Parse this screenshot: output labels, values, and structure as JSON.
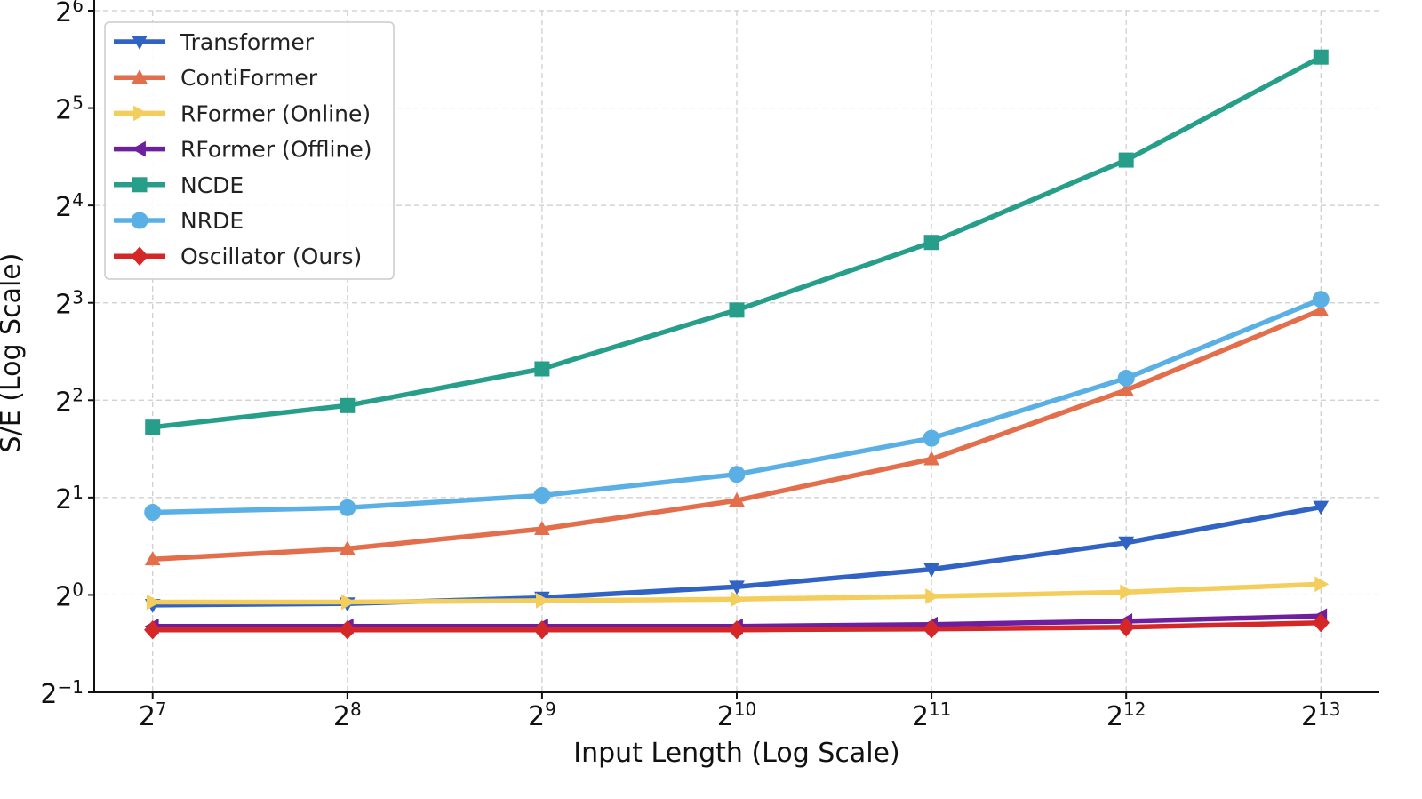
{
  "chart_data": {
    "type": "line",
    "title": "",
    "xlabel": "Input Length (Log Scale)",
    "ylabel": "S/E (Log Scale)",
    "x_scale": "log2",
    "y_scale": "log2",
    "x": [
      128,
      256,
      512,
      1024,
      2048,
      4096,
      8192
    ],
    "x_tick_labels": [
      {
        "base": "2",
        "exp": "7"
      },
      {
        "base": "2",
        "exp": "8"
      },
      {
        "base": "2",
        "exp": "9"
      },
      {
        "base": "2",
        "exp": "10"
      },
      {
        "base": "2",
        "exp": "11"
      },
      {
        "base": "2",
        "exp": "12"
      },
      {
        "base": "2",
        "exp": "13"
      }
    ],
    "y_tick_labels": [
      {
        "base": "2",
        "exp": "−1"
      },
      {
        "base": "2",
        "exp": "0"
      },
      {
        "base": "2",
        "exp": "1"
      },
      {
        "base": "2",
        "exp": "2"
      },
      {
        "base": "2",
        "exp": "3"
      },
      {
        "base": "2",
        "exp": "4"
      },
      {
        "base": "2",
        "exp": "5"
      },
      {
        "base": "2",
        "exp": "6"
      }
    ],
    "x_exp_range": [
      6.7,
      13.3
    ],
    "y_exp_range": [
      -1,
      6
    ],
    "grid": true,
    "legend_position": "top-left",
    "series": [
      {
        "name": "Transformer",
        "color": "#3063c4",
        "marker": "triangle-down",
        "values": [
          0.93,
          0.94,
          0.98,
          1.06,
          1.2,
          1.45,
          1.87
        ]
      },
      {
        "name": "ContiFormer",
        "color": "#e36e4c",
        "marker": "triangle-up",
        "values": [
          1.29,
          1.39,
          1.6,
          1.96,
          2.63,
          4.3,
          7.6
        ]
      },
      {
        "name": "RFormer (Online)",
        "color": "#f3ce5d",
        "marker": "triangle-right",
        "values": [
          0.95,
          0.95,
          0.96,
          0.97,
          0.99,
          1.02,
          1.08
        ]
      },
      {
        "name": "RFormer (Offline)",
        "color": "#6e1f9e",
        "marker": "triangle-left",
        "values": [
          0.8,
          0.8,
          0.8,
          0.8,
          0.81,
          0.83,
          0.86
        ]
      },
      {
        "name": "NCDE",
        "color": "#279e8a",
        "marker": "square",
        "values": [
          3.3,
          3.85,
          5.0,
          7.6,
          12.3,
          22.1,
          46.0
        ]
      },
      {
        "name": "NRDE",
        "color": "#5ab0e5",
        "marker": "circle",
        "values": [
          1.8,
          1.86,
          2.03,
          2.36,
          3.05,
          4.68,
          8.2
        ]
      },
      {
        "name": "Oscillator (Ours)",
        "color": "#d62728",
        "marker": "diamond",
        "values": [
          0.78,
          0.78,
          0.78,
          0.78,
          0.785,
          0.795,
          0.82
        ]
      }
    ]
  }
}
